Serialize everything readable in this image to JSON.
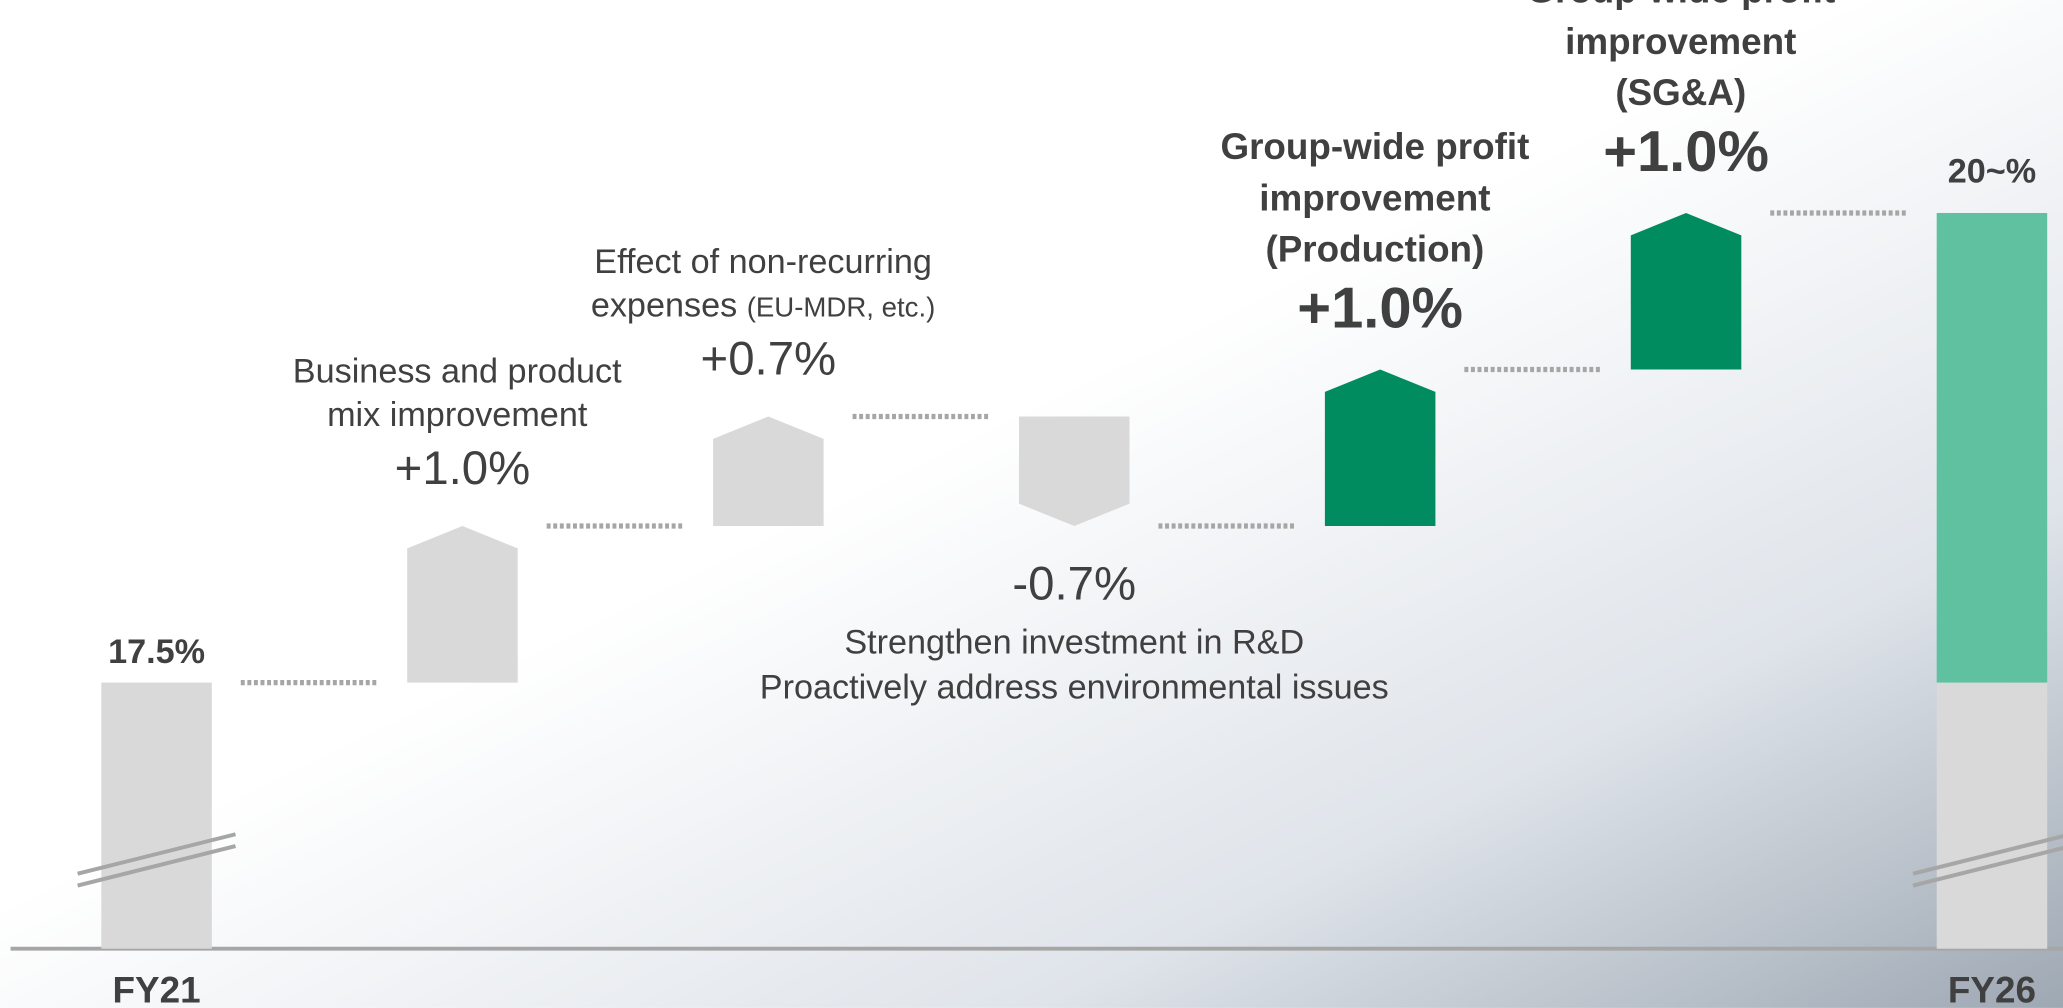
{
  "chart_data": {
    "type": "waterfall",
    "ylim": [
      15.8,
      21.86
    ],
    "start": {
      "label": "FY21",
      "value": 17.5,
      "value_label": "17.5%",
      "color": "#d9d9d9"
    },
    "steps": [
      {
        "label": [
          "Business and product",
          "mix improvement"
        ],
        "value": 1.0,
        "value_label": "+1.0%",
        "color": "#d9d9d9"
      },
      {
        "label": [
          "Effect of non-recurring",
          "expenses"
        ],
        "note": "(EU-MDR, etc.)",
        "value": 0.7,
        "value_label": "+0.7%",
        "color": "#d9d9d9"
      },
      {
        "label": [
          "Strengthen investment in R&D",
          "Proactively address environmental issues"
        ],
        "value": -0.7,
        "value_label": "-0.7%",
        "color": "#d9d9d9"
      },
      {
        "label": [
          "Group-wide profit",
          "improvement",
          "(Production)"
        ],
        "value": 1.0,
        "value_label": "+1.0%",
        "color": "#008c5f"
      },
      {
        "label": [
          "Group-wide profit",
          "improvement",
          "(SG&A)"
        ],
        "value": 1.0,
        "value_label": "+1.0%",
        "color": "#008c5f"
      }
    ],
    "end": {
      "label": "FY26",
      "value_label": "20~%",
      "color": "#5fc1a0"
    }
  }
}
